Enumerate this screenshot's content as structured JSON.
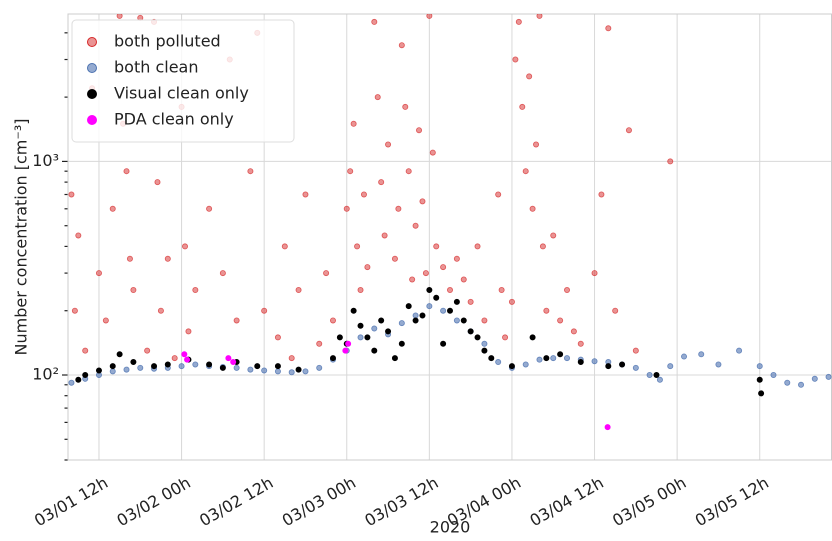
{
  "chart_data": {
    "type": "scatter",
    "x_label": "2020",
    "y_label": "Number concentration [cm⁻³]",
    "yscale": "log",
    "grid": true,
    "legend": "upper left",
    "xlim": [
      7.5,
      118.5
    ],
    "xticks": [
      {
        "value": 12,
        "label": "03/01 12h"
      },
      {
        "value": 24,
        "label": "03/02 00h"
      },
      {
        "value": 36,
        "label": "03/02 12h"
      },
      {
        "value": 48,
        "label": "03/03 00h"
      },
      {
        "value": 60,
        "label": "03/03 12h"
      },
      {
        "value": 72,
        "label": "03/04 00h"
      },
      {
        "value": 84,
        "label": "03/04 12h"
      },
      {
        "value": 96,
        "label": "03/05 00h"
      },
      {
        "value": 108,
        "label": "03/05 12h"
      }
    ],
    "ylim": [
      40,
      4900
    ],
    "yticks": [
      {
        "value": 100,
        "label": "10²"
      },
      {
        "value": 1000,
        "label": "10³"
      }
    ],
    "yminorticks": [
      40,
      50,
      60,
      70,
      80,
      90,
      200,
      300,
      400,
      500,
      600,
      700,
      800,
      900,
      2000,
      3000,
      4000
    ],
    "series": [
      {
        "name": "both polluted",
        "color": "#d62728",
        "alpha": 0.5,
        "x": [
          8,
          8.5,
          9,
          10,
          11,
          12,
          13,
          14,
          15,
          15.5,
          16,
          16.5,
          17,
          18,
          19,
          20,
          20.5,
          21,
          22,
          23,
          24,
          24.5,
          25,
          26,
          28,
          30,
          31,
          32,
          34,
          35,
          36,
          38,
          39,
          40,
          41,
          42,
          44,
          45,
          46,
          48,
          48.5,
          49,
          49.5,
          50,
          50.5,
          51,
          52,
          52.5,
          53,
          53.5,
          54,
          55,
          55.5,
          56,
          56.5,
          57,
          57.5,
          58,
          58.5,
          59,
          59.5,
          60,
          60.5,
          61,
          62,
          63,
          64,
          65,
          66,
          67,
          68,
          70,
          70.5,
          71,
          72,
          72.5,
          73,
          73.5,
          74,
          74.5,
          75,
          75.5,
          76,
          76.5,
          77,
          78,
          79,
          80,
          81,
          82,
          84,
          85,
          86,
          87,
          89,
          90,
          95
        ],
        "values": [
          700,
          200,
          450,
          130,
          2200,
          300,
          180,
          600,
          4800,
          1500,
          900,
          350,
          250,
          4700,
          130,
          4500,
          800,
          200,
          350,
          120,
          1800,
          400,
          160,
          250,
          600,
          300,
          3000,
          180,
          900,
          4000,
          200,
          150,
          400,
          120,
          250,
          700,
          140,
          300,
          180,
          600,
          900,
          1500,
          400,
          250,
          700,
          320,
          4500,
          2000,
          800,
          450,
          1200,
          350,
          600,
          3500,
          1800,
          900,
          280,
          500,
          1400,
          650,
          300,
          4800,
          1100,
          400,
          320,
          250,
          350,
          280,
          220,
          400,
          180,
          700,
          250,
          150,
          220,
          3000,
          4500,
          1800,
          900,
          2500,
          600,
          1200,
          4800,
          400,
          200,
          450,
          180,
          250,
          160,
          140,
          300,
          700,
          4200,
          200,
          1400,
          130,
          1000
        ]
      },
      {
        "name": "both clean",
        "color": "#4c72b0",
        "alpha": 0.6,
        "x": [
          8,
          10,
          12,
          14,
          16,
          18,
          20,
          22,
          24,
          26,
          28,
          30,
          32,
          34,
          36,
          38,
          40,
          42,
          44,
          46,
          48,
          50,
          52,
          54,
          56,
          58,
          60,
          62,
          64,
          66,
          68,
          70,
          72,
          74,
          76,
          78,
          80,
          82,
          84,
          86,
          88,
          90,
          92,
          93.5,
          95,
          97,
          99.5,
          102,
          105,
          108,
          110,
          112,
          114,
          116,
          118
        ],
        "values": [
          92,
          96,
          100,
          104,
          106,
          108,
          107,
          108,
          110,
          112,
          110,
          109,
          108,
          106,
          105,
          104,
          103,
          104,
          108,
          118,
          130,
          150,
          165,
          155,
          175,
          190,
          210,
          200,
          180,
          160,
          140,
          115,
          108,
          112,
          118,
          120,
          120,
          118,
          116,
          115,
          112,
          108,
          100,
          95,
          110,
          122,
          125,
          112,
          130,
          110,
          100,
          92,
          90,
          96,
          98
        ]
      },
      {
        "name": "Visual clean only",
        "color": "#000000",
        "alpha": 1,
        "x": [
          9,
          10,
          12,
          14,
          15,
          17,
          20,
          22,
          25,
          28,
          30,
          32,
          35,
          38,
          41,
          46,
          47,
          48,
          49,
          50,
          51,
          52,
          53,
          54,
          55,
          56,
          57,
          58,
          59,
          60,
          61,
          62,
          63,
          64,
          65,
          66,
          67,
          68,
          69,
          72,
          75,
          77,
          79,
          82,
          86,
          88,
          93,
          108,
          108.2
        ],
        "values": [
          95,
          100,
          105,
          110,
          125,
          115,
          110,
          112,
          118,
          112,
          108,
          115,
          110,
          110,
          106,
          120,
          150,
          140,
          200,
          170,
          150,
          130,
          180,
          160,
          120,
          140,
          210,
          180,
          190,
          250,
          230,
          140,
          200,
          220,
          180,
          160,
          150,
          130,
          120,
          110,
          150,
          120,
          125,
          115,
          110,
          112,
          100,
          95,
          82
        ]
      },
      {
        "name": "PDA clean only",
        "color": "#ff00ff",
        "alpha": 1,
        "x": [
          24.4,
          24.8,
          30.8,
          31.5,
          47.8,
          48.2,
          85.9
        ],
        "values": [
          125,
          118,
          120,
          115,
          130,
          140,
          57
        ]
      }
    ]
  }
}
